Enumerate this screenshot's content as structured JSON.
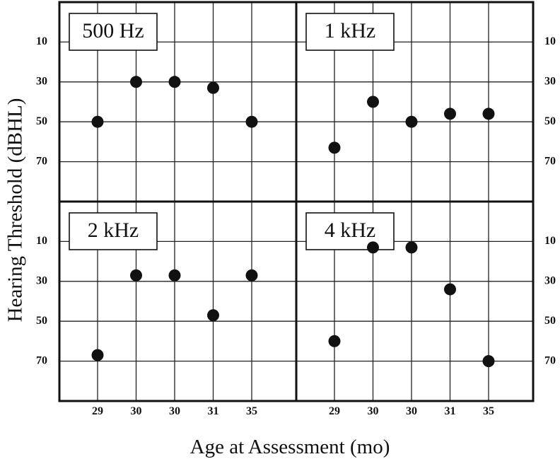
{
  "chart_data": {
    "type": "scatter",
    "layout": "2x2 panels sharing axes",
    "xlabel": "Age at Assessment (mo)",
    "ylabel": "Hearing Threshold (dBHL)",
    "x_tick_labels": [
      "29",
      "30",
      "30",
      "31",
      "35"
    ],
    "y_ticks": [
      10,
      30,
      50,
      70
    ],
    "y_tick_labels": [
      "10",
      "30",
      "50",
      "70"
    ],
    "ylim": [
      -10,
      90
    ],
    "y_inverted": true,
    "grid": true,
    "marker_color": "#111111",
    "panels": [
      {
        "label": "500 Hz",
        "points": [
          {
            "x_index": 0,
            "y": 50
          },
          {
            "x_index": 1,
            "y": 30
          },
          {
            "x_index": 2,
            "y": 30
          },
          {
            "x_index": 3,
            "y": 33
          },
          {
            "x_index": 4,
            "y": 50
          }
        ]
      },
      {
        "label": "1 kHz",
        "points": [
          {
            "x_index": 0,
            "y": 63
          },
          {
            "x_index": 1,
            "y": 40
          },
          {
            "x_index": 2,
            "y": 50
          },
          {
            "x_index": 3,
            "y": 46
          },
          {
            "x_index": 4,
            "y": 46
          }
        ]
      },
      {
        "label": "2 kHz",
        "points": [
          {
            "x_index": 0,
            "y": 67
          },
          {
            "x_index": 1,
            "y": 27
          },
          {
            "x_index": 2,
            "y": 27
          },
          {
            "x_index": 3,
            "y": 47
          },
          {
            "x_index": 4,
            "y": 27
          }
        ]
      },
      {
        "label": "4 kHz",
        "points": [
          {
            "x_index": 0,
            "y": 60
          },
          {
            "x_index": 1,
            "y": 13
          },
          {
            "x_index": 2,
            "y": 13
          },
          {
            "x_index": 3,
            "y": 34
          },
          {
            "x_index": 4,
            "y": 70
          }
        ]
      }
    ]
  }
}
